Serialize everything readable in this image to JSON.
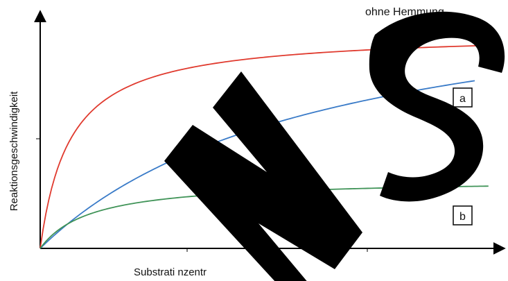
{
  "chart_data": {
    "type": "line",
    "title": "",
    "xlabel": "Substrati nzentr",
    "ylabel": "Reaktionsgeschwindigkeit",
    "xlim": [
      0,
      100
    ],
    "ylim": [
      0,
      100
    ],
    "grid": false,
    "axis_ticks": false,
    "series": [
      {
        "name": "ohne Hemmung",
        "color": "#e03a2e",
        "vmax": 100,
        "km": 6.5,
        "x_end": 100
      },
      {
        "name": "a",
        "color": "#3a7bc8",
        "vmax": 128,
        "km": 62,
        "x_end": 95
      },
      {
        "name": "b",
        "color": "#3f9357",
        "vmax": 32,
        "km": 11,
        "x_end": 98
      }
    ],
    "annotations": [
      {
        "text": "ohne Hemmung",
        "boxed": false
      },
      {
        "text": "a",
        "boxed": true
      },
      {
        "text": "b",
        "boxed": true
      }
    ]
  }
}
